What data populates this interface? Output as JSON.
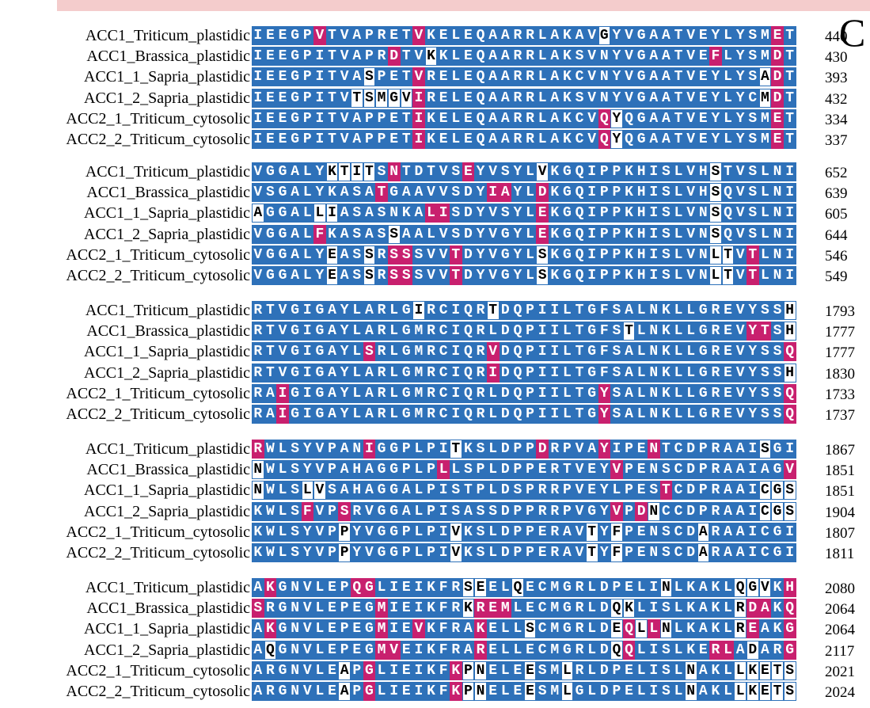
{
  "colors": {
    "identical": "#2e71b9",
    "variant": "#c8206e",
    "gap": "#ffffff",
    "topbar": "#f4cccc"
  },
  "corner_text": "C",
  "blocks": [
    {
      "rows": [
        {
          "name": "ACC1_Triticum_plastidic",
          "seq": "IEEGPVTVAPRETVKELEQAARRLAKAVGYVGAATVEYLYSMET",
          "cls": "bbbbbmbbbbbbbmbbbbbbbbbbbbbbwbbbbbbbbbbbbbmb",
          "pos": "440"
        },
        {
          "name": "ACC1_Brassica_plastidic",
          "seq": "IEEGPITVAPRDTVKKLEQAARRLAKSVNYVGAATVEFLYSMDT",
          "cls": "bbbbbbbbbbbmbbwbbbbbbbbbbbbbbbbbbbbbbmbbbbmb",
          "pos": "430"
        },
        {
          "name": "ACC1_1_Sapria_plastidic",
          "seq": "IEEGPITVASPETVRELEQAARRLAKCVNYVGAATVEYLYSADT",
          "cls": "bbbbbbbbbwbbbmbbbbbbbbbbbbbbbbbbbbbbbbbbbwmb",
          "pos": "393"
        },
        {
          "name": "ACC1_2_Sapria_plastidic",
          "seq": "IEEGPITVTSMGVIRELEQAARRLAKSVNYVGAATVEYLYCMDT",
          "cls": "bbbbbbbbwwwwwmbbbbbbbbbbbbbbbbbbbbbbbbbbbwmb",
          "pos": "432"
        },
        {
          "name": "ACC2_1_Triticum_cytosolic",
          "seq": "IEEGPITVAPPETIKELEQAARRLAKCVQYQGAATVEYLYSMET",
          "cls": "bbbbbbbbbbbbbmbbbbbbbbbbbbbbmwbbbbbbbbbbbbmb",
          "pos": "334"
        },
        {
          "name": "ACC2_2_Triticum_cytosolic",
          "seq": "IEEGPITVAPPETIKELEQAARRLAKCVQYQGAATVEYLYSMET",
          "cls": "bbbbbbbbbbbbbmbbbbbbbbbbbbbbmwbbbbbbbbbbbbmb",
          "pos": "337"
        }
      ]
    },
    {
      "rows": [
        {
          "name": "ACC1_Triticum_plastidic",
          "seq": "VGGALYKTITSNTDTVSEYVSYLVKGQIPPKHISLVHSTVSLNI",
          "cls": "bbbbbbwwwwbmbbbbbmbbbbbwbbbbbbbbbbbbbwbbbbbb",
          "pos": "652"
        },
        {
          "name": "ACC1_Brassica_plastidic",
          "seq": "VSGALYKASATGAAVVSDYIAYLDKGQIPPKHISLVHSQVSLNI",
          "cls": "bbbbbbbbbbmbbbbbbbbmmbbmbbbbbbbbbbbbbwbbbbbb",
          "pos": "639"
        },
        {
          "name": "ACC1_1_Sapria_plastidic",
          "seq": "AGGALLIASASNKALISDYVSYLEKGQIPPKHISLVNSQVSLNI",
          "cls": "wbbbbwwbbbbbbbmmbbbbbbbmbbbbbbbbbbbbbwbbbbbb",
          "pos": "605"
        },
        {
          "name": "ACC1_2_Sapria_plastidic",
          "seq": "VGGALFKASASSAALVSDYVGYLEKGQIPPKHISLVNSQVSLNI",
          "cls": "bbbbbmbbbbbwbbbbbbbbbbbmbbbbbbbbbbbbbwbbbbbb",
          "pos": "644"
        },
        {
          "name": "ACC2_1_Triticum_cytosolic",
          "seq": "VGGALYEASSRSSSVVTDYVGYLSKGQIPPKHISLVNLTVTLNI",
          "cls": "bbbbbbwbbwbmmbbbmbbbbbbwbbbbbbbbbbbbbwwbmbbb",
          "pos": "546"
        },
        {
          "name": "ACC2_2_Triticum_cytosolic",
          "seq": "VGGALYEASSRSSSVVTDYVGYLSKGQIPPKHISLVNLTVTLNI",
          "cls": "bbbbbbwbbwbmmbbbmbbbbbbwbbbbbbbbbbbbbwwbmbbb",
          "pos": "549"
        }
      ]
    },
    {
      "rows": [
        {
          "name": "ACC1_Triticum_plastidic",
          "seq": "RTVGIGAYLARLGIRCIQRTDQPIILTGFSALNKLLGREVYSSH",
          "cls": "bbbbbbbbbbbbbwbbbbbwbbbbbbbbbbbbbbbbbbbbbbbw",
          "pos": "1793"
        },
        {
          "name": "ACC1_Brassica_plastidic",
          "seq": "RTVGIGAYLARLGMRCIQRLDQPIILTGFSTLNKLLGREVYTSH",
          "cls": "bbbbbbbbbbbbbbbbbbbbbbbbbbbbbbwbbbbbbbbbmmbw",
          "pos": "1777"
        },
        {
          "name": "ACC1_1_Sapria_plastidic",
          "seq": "RTVGIGAYLSRLGMRCIQRVDQPIILTGFSALNKLLGREVYSSQ",
          "cls": "bbbbbbbbbmbbbbbbbbbmbbbbbbbbbbbbbbbbbbbbbbbm",
          "pos": "1777"
        },
        {
          "name": "ACC1_2_Sapria_plastidic",
          "seq": "RTVGIGAYLARLGMRCIQRIDQPIILTGFSALNKLLGREVYSSH",
          "cls": "bbbbbbbbbbbbbbbbbbbmbbbbbbbbbbbbbbbbbbbbbbbw",
          "pos": "1830"
        },
        {
          "name": "ACC2_1_Triticum_cytosolic",
          "seq": "RAIGIGAYLARLGMRCIQRLDQPIILTGYSALNKLLGREVYSSQ",
          "cls": "bbmbbbbbbbbbbbbbbbbbbbbbbbbbmbbbbbbbbbbbbbbm",
          "pos": "1733"
        },
        {
          "name": "ACC2_2_Triticum_cytosolic",
          "seq": "RAIGIGAYLARLGMRCIQRLDQPIILTGYSALNKLLGREVYSSQ",
          "cls": "bbmbbbbbbbbbbbbbbbbbbbbbbbbbmbbbbbbbbbbbbbbm",
          "pos": "1737"
        }
      ]
    },
    {
      "rows": [
        {
          "name": "ACC1_Triticum_plastidic",
          "seq": "RWLSYVPANIGGPLPITKSLDPPDRPVAYIPENTCDPRAAISGI",
          "cls": "mbbbbbbbbmbbbbbbwbbbbbbmbbbbmbbbmbbbbbbbbwbb",
          "pos": "1867"
        },
        {
          "name": "ACC1_Brassica_plastidic",
          "seq": "NWLSYVPAHAGGPLPLLSPLDPPERTVEYVPENSCDPRAAIAGV",
          "cls": "wbbbbbbbbbbbbbbmbbbbbbbbbbbbbmbbbbbbbbbbbbbm",
          "pos": "1851"
        },
        {
          "name": "ACC1_1_Sapria_plastidic",
          "seq": "NWLSLVSAHAGGALPISTPLDSPRRPVEYLPESTCDPRAAICGS",
          "cls": "wbbbwwbbbbbbbbbbbbbbbbbbbbbbbbbbbmbbbbbbbwww",
          "pos": "1851"
        },
        {
          "name": "ACC1_2_Sapria_plastidic",
          "seq": "KWLSFVPSRVGGALPISASSDPPRRPVGYVPDNCCDPRAAICGS",
          "cls": "bbbbmbbmbbbbbbbbbbbbbbbbbbbbbmbmwbbbbbbbbwww",
          "pos": "1904"
        },
        {
          "name": "ACC2_1_Triticum_cytosolic",
          "seq": "KWLSYVPPYVGGPLPIVKSLDPPERAVTYFPENSCDARAAICGI",
          "cls": "bbbbbbbwbbbbbbbbwbbbbbbbbbbwbwbbbbbbwbbbbbbb",
          "pos": "1807"
        },
        {
          "name": "ACC2_2_Triticum_cytosolic",
          "seq": "KWLSYVPPYVGGPLPIVKSLDPPERAVTYFPENSCDARAAICGI",
          "cls": "bbbbbbbwbbbbbbbbwbbbbbbbbbbwbwbbbbbbwbbbbbbb",
          "pos": "1811"
        }
      ]
    },
    {
      "rows": [
        {
          "name": "ACC1_Triticum_plastidic",
          "seq": "AKGNVLEPQGLIEIKFRSEELQECMGRLDPELINLKAKLQGVKH",
          "cls": "bmbbbbbbmmbbbbbbbwwbbwbbbbbbbbbbbwbbbbbwwwbm",
          "pos": "2080"
        },
        {
          "name": "ACC1_Brassica_plastidic",
          "seq": "SRGNVLEPEGMIEIKFRKREMLECMGRLDQKLISLKAKLRDAKQ",
          "cls": "mbbbbbbbbbmbbbbbbwmmmbbbbbbbbwwbbbbbbbbwmmbm",
          "pos": "2064"
        },
        {
          "name": "ACC1_1_Sapria_plastidic",
          "seq": "AKGNVLEPEGMIEVKFRAKELLSCMGRLDEQLLNLKAKLREAKG",
          "cls": "bmbbbbbbbbmbbmbbbbmbbbwbbbbbbwmwmwbbbbbwmbbm",
          "pos": "2064"
        },
        {
          "name": "ACC1_2_Sapria_plastidic",
          "seq": "AQGNVLEPEGMVEIKFRARELLECMGRLDQQLISLKERLADARG",
          "cls": "bwbbbbbbbbmmbbbbbbmbbbbbbbbbbwmbbbbbbmmbwbbm",
          "pos": "2117"
        },
        {
          "name": "ACC2_1_Triticum_cytosolic",
          "seq": "ARGNVLEAPGLIEIKFKPNELEESMLRLDPELISLNAKLLKETS",
          "cls": "bbbbbbbwbmbbbbbbmwwbbbwbbwbbbbbbbbbwbbbwwwww",
          "pos": "2021"
        },
        {
          "name": "ACC2_2_Triticum_cytosolic",
          "seq": "ARGNVLEAPGLIEIKFKPNELEESMLGLDPELISLNAKLLKETS",
          "cls": "bbbbbbbwbmbbbbbbmwwbbbwbbwbbbbbbbbbwbbbwwwww",
          "pos": "2024"
        }
      ]
    }
  ]
}
